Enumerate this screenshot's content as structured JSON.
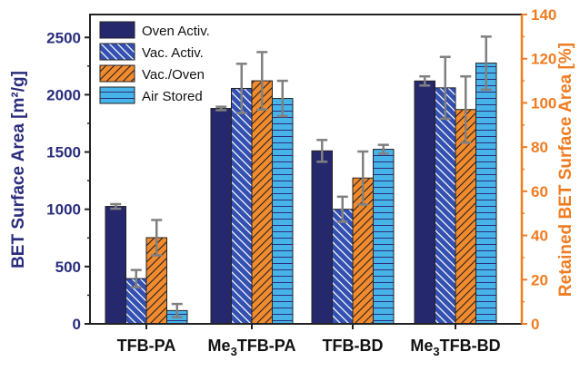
{
  "colors": {
    "left_axis": "#2b2d7c",
    "right_axis": "#f07c21",
    "oven": "#26286e",
    "vac": "#3451b2",
    "vacoven": "#f28a2e",
    "air": "#46b4e8",
    "error": "#808080"
  },
  "chart_data": {
    "type": "bar",
    "categories": [
      "TFB-PA",
      "Me3TFB-PA",
      "TFB-BD",
      "Me3TFB-BD"
    ],
    "category_labels": [
      {
        "pre": "TFB-PA",
        "sub": "",
        "post": ""
      },
      {
        "pre": "Me",
        "sub": "3",
        "post": "TFB-PA"
      },
      {
        "pre": "TFB-BD",
        "sub": "",
        "post": ""
      },
      {
        "pre": "Me",
        "sub": "3",
        "post": "TFB-BD"
      }
    ],
    "series": [
      {
        "name": "Oven Activ.",
        "axis": "left",
        "pattern": "solid",
        "values": [
          1025,
          1880,
          1510,
          2120
        ],
        "errors": [
          20,
          15,
          95,
          40
        ]
      },
      {
        "name": "Vac. Activ.",
        "axis": "left",
        "pattern": "backslash",
        "values": [
          395,
          2055,
          1000,
          2060
        ],
        "errors": [
          75,
          215,
          110,
          270
        ]
      },
      {
        "name": "Vac./Oven",
        "axis": "right",
        "pattern": "slash",
        "values": [
          39,
          110,
          66,
          97
        ],
        "errors": [
          8,
          13,
          12,
          15
        ]
      },
      {
        "name": "Air Stored",
        "axis": "right",
        "pattern": "hlines",
        "values": [
          6,
          102,
          79,
          118
        ],
        "errors": [
          3,
          8,
          2,
          12
        ]
      }
    ],
    "ylabel": "BET Surface Area [m²/g]",
    "ylabel_right": "Retained BET Surface Area [%]",
    "ylim": [
      0,
      2700
    ],
    "yticks": [
      0,
      500,
      1000,
      1500,
      2000,
      2500
    ],
    "ylim_right": [
      0,
      140
    ],
    "yticks_right": [
      0,
      20,
      40,
      60,
      80,
      100,
      120,
      140
    ],
    "legend_position": "top-left",
    "grid": false
  }
}
